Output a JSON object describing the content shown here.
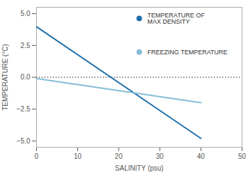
{
  "chart_data": {
    "type": "line",
    "xlabel": "SALINITY (psu)",
    "ylabel": "TEMPERATURE (°C)",
    "xlim": [
      0,
      50
    ],
    "ylim": [
      -5.5,
      5.5
    ],
    "xticks": [
      0,
      10,
      20,
      30,
      40,
      50
    ],
    "yticks": [
      {
        "value": -5.0,
        "label": "−5.0"
      },
      {
        "value": -2.5,
        "label": "−2.5"
      },
      {
        "value": 0.0,
        "label": "0.0"
      },
      2.5,
      {
        "value": 5.0,
        "label": "5.0"
      }
    ],
    "series": [
      {
        "name": "TEMPERATURE OF\nMAX DENSITY",
        "color": "#1e6fa8",
        "x": [
          0,
          40
        ],
        "values": [
          3.98,
          -4.8
        ]
      },
      {
        "name": "FREEZING TEMPERATURE",
        "color": "#85bdd6",
        "x": [
          0,
          40
        ],
        "values": [
          -0.09,
          -2.0
        ]
      }
    ],
    "hline": {
      "y": 0.0,
      "color": "#666666",
      "line_style": "dotted"
    },
    "legend": "upper right"
  }
}
